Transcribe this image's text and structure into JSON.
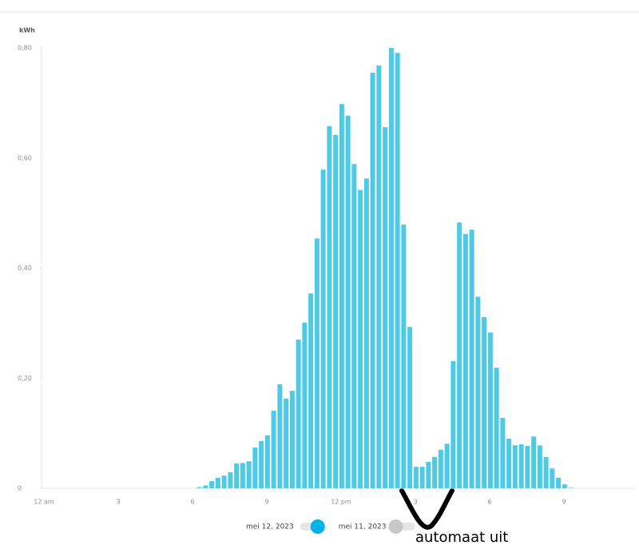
{
  "chart_data": {
    "type": "bar",
    "y_label": "kWh",
    "categories": [
      "12 am",
      null,
      null,
      null,
      null,
      null,
      null,
      null,
      null,
      null,
      null,
      null,
      "3",
      null,
      null,
      null,
      null,
      null,
      null,
      null,
      null,
      null,
      null,
      null,
      "6",
      null,
      null,
      null,
      null,
      null,
      null,
      null,
      null,
      null,
      null,
      null,
      "9",
      null,
      null,
      null,
      null,
      null,
      null,
      null,
      null,
      null,
      null,
      null,
      "12 pm",
      null,
      null,
      null,
      null,
      null,
      null,
      null,
      null,
      null,
      null,
      null,
      "3",
      null,
      null,
      null,
      null,
      null,
      null,
      null,
      null,
      null,
      null,
      null,
      "6",
      null,
      null,
      null,
      null,
      null,
      null,
      null,
      null,
      null,
      null,
      null,
      "9",
      null,
      null,
      null,
      null,
      null,
      null,
      null,
      null,
      null,
      null,
      null
    ],
    "values": [
      0,
      0,
      0,
      0,
      0,
      0,
      0,
      0,
      0,
      0,
      0,
      0,
      0,
      0,
      0,
      0,
      0,
      0,
      0,
      0,
      0,
      0,
      0,
      0,
      0,
      0.002,
      0.005,
      0.013,
      0.019,
      0.023,
      0.029,
      0.045,
      0.046,
      0.049,
      0.074,
      0.086,
      0.096,
      0.141,
      0.189,
      0.163,
      0.177,
      0.27,
      0.301,
      0.354,
      0.454,
      0.579,
      0.658,
      0.642,
      0.698,
      0.677,
      0.589,
      0.542,
      0.563,
      0.755,
      0.768,
      0.656,
      0.8,
      0.791,
      0.479,
      0.293,
      0.039,
      0.039,
      0.048,
      0.057,
      0.07,
      0.081,
      0.231,
      0.483,
      0.462,
      0.47,
      0.348,
      0.311,
      0.283,
      0.219,
      0.128,
      0.09,
      0.078,
      0.08,
      0.077,
      0.094,
      0.078,
      0.057,
      0.036,
      0.019,
      0.007,
      0.001,
      0,
      0,
      0,
      0,
      0,
      0,
      0,
      0,
      0,
      0
    ],
    "color": "#4ec9e6",
    "ylim": [
      0,
      0.8
    ],
    "yticks": [
      0,
      {
        "value": 0.2,
        "label": "0,20"
      },
      {
        "value": 0.4,
        "label": "0,40"
      },
      {
        "value": 0.6,
        "label": "0,60"
      },
      {
        "value": 0.8,
        "label": "0,80"
      }
    ],
    "legend": [
      {
        "name": "mei 12, 2023",
        "on": true,
        "color": "#00b4e6"
      },
      {
        "name": "mei 11, 2023",
        "on": false,
        "color": "#c8c8c8"
      }
    ],
    "annotation": "automaat uit"
  }
}
